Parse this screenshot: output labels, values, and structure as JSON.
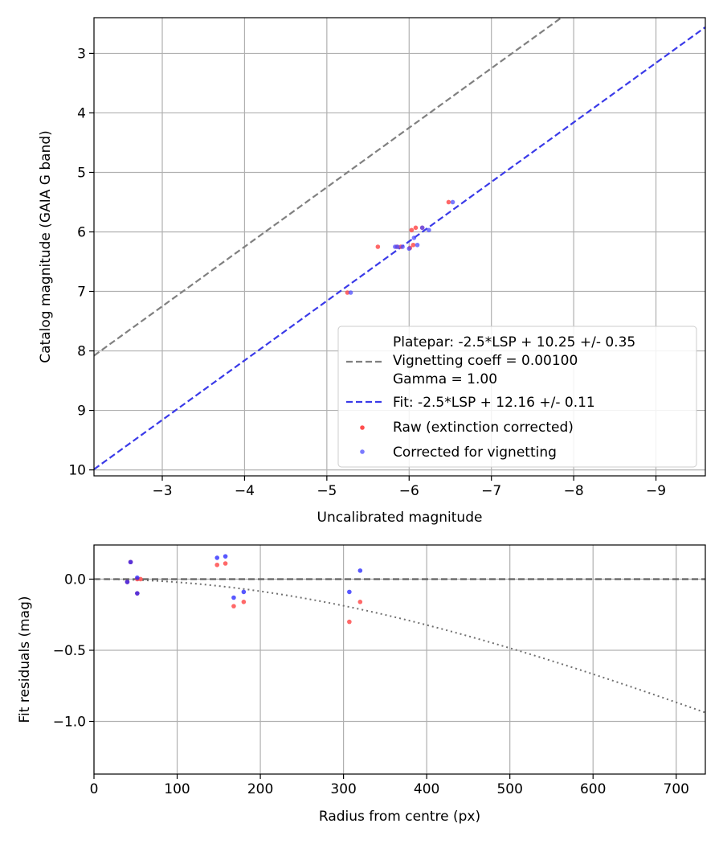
{
  "chart_data": [
    {
      "type": "scatter",
      "xlabel": "Uncalibrated magnitude",
      "ylabel": "Catalog magnitude (GAIA G band)",
      "xlim": [
        -2.17,
        -9.6
      ],
      "ylim": [
        10.1,
        2.4
      ],
      "x_inverted": true,
      "y_inverted": true,
      "grid": true,
      "legend_position": "lower-right",
      "xticks": [
        -3,
        -4,
        -5,
        -6,
        -7,
        -8,
        -9
      ],
      "xtick_labels": [
        "−3",
        "−4",
        "−5",
        "−6",
        "−7",
        "−8",
        "−9"
      ],
      "yticks": [
        3,
        4,
        5,
        6,
        7,
        8,
        9,
        10
      ],
      "ytick_labels": [
        "3",
        "4",
        "5",
        "6",
        "7",
        "8",
        "9",
        "10"
      ],
      "lines": [
        {
          "label": "Platepar: -2.5*LSP + 10.25 +/- 0.35",
          "label2": "Vignetting coeff = 0.00100",
          "label3": "Gamma = 1.00",
          "intercept": 10.25,
          "slope": 1,
          "color": "#808080",
          "style": "dashed"
        },
        {
          "label": "Fit: -2.5*LSP + 12.16 +/- 0.11",
          "intercept": 12.16,
          "slope": 1,
          "color": "#3a3ae8",
          "style": "dashed"
        }
      ],
      "series": [
        {
          "name": "Raw (extinction corrected)",
          "color": "#ff4d4d",
          "x": [
            -5.25,
            -5.62,
            -5.85,
            -5.9,
            -6.01,
            -6.03,
            -6.05,
            -6.08,
            -6.16,
            -6.48
          ],
          "y": [
            7.02,
            6.25,
            6.25,
            6.25,
            6.27,
            5.97,
            6.22,
            5.93,
            5.93,
            5.5
          ]
        },
        {
          "name": "Corrected for vignetting",
          "color": "#4d4dff",
          "x": [
            -5.29,
            -5.83,
            -5.86,
            -5.92,
            -6.0,
            -6.06,
            -6.1,
            -6.16,
            -6.24,
            -6.53
          ],
          "y": [
            7.02,
            6.25,
            6.25,
            6.25,
            6.28,
            6.1,
            6.22,
            5.93,
            5.97,
            5.5
          ]
        }
      ]
    },
    {
      "type": "scatter",
      "xlabel": "Radius from centre (px)",
      "ylabel": "Fit residuals (mag)",
      "xlim": [
        0,
        735
      ],
      "ylim": [
        -1.37,
        0.24
      ],
      "grid": true,
      "xticks": [
        0,
        100,
        200,
        300,
        400,
        500,
        600,
        700
      ],
      "xtick_labels": [
        "0",
        "100",
        "200",
        "300",
        "400",
        "500",
        "600",
        "700"
      ],
      "yticks": [
        0.0,
        -0.5,
        -1.0
      ],
      "ytick_labels": [
        "0.0",
        "−0.5",
        "−1.0"
      ],
      "zero_line": {
        "y": 0,
        "color": "#606060",
        "style": "dashed"
      },
      "vignetting_curve": {
        "coeff": 0.001,
        "color": "#707070",
        "style": "dotted"
      },
      "series": [
        {
          "name": "Raw (extinction corrected)",
          "color": "#ff4d4d",
          "x": [
            40,
            44,
            52,
            52,
            56,
            148,
            158,
            168,
            180,
            307,
            320
          ],
          "y": [
            -0.02,
            0.12,
            -0.1,
            0.0,
            0.0,
            0.1,
            0.11,
            -0.19,
            -0.16,
            -0.3,
            -0.16
          ]
        },
        {
          "name": "Corrected for vignetting",
          "color": "#2020ff",
          "x": [
            40,
            44,
            52,
            52,
            148,
            158,
            168,
            180,
            307,
            320
          ],
          "y": [
            -0.02,
            0.12,
            -0.1,
            0.01,
            0.15,
            0.16,
            -0.13,
            -0.09,
            -0.09,
            0.06
          ]
        }
      ]
    }
  ]
}
